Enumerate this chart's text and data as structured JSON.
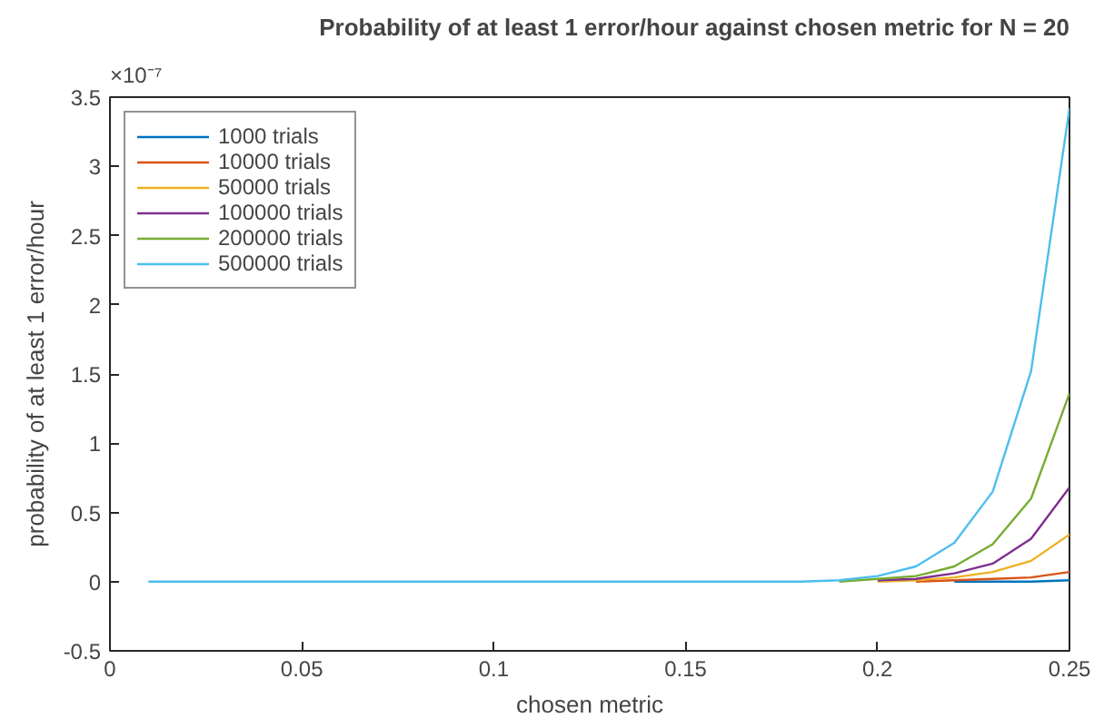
{
  "chart_data": {
    "type": "line",
    "title": "Probability of at least 1 error/hour against chosen metric for N = 20",
    "xlabel": "chosen metric",
    "ylabel": "probability of at least 1 error/hour",
    "annotations": [
      "×10⁻⁷"
    ],
    "x": [
      0.01,
      0.02,
      0.03,
      0.04,
      0.05,
      0.06,
      0.07,
      0.08,
      0.09,
      0.1,
      0.11,
      0.12,
      0.13,
      0.14,
      0.15,
      0.16,
      0.17,
      0.18,
      0.19,
      0.2,
      0.21,
      0.22,
      0.23,
      0.24,
      0.25
    ],
    "series": [
      {
        "name": "1000 trials",
        "color": "#0072bd",
        "values": [
          null,
          null,
          null,
          null,
          null,
          null,
          null,
          null,
          null,
          null,
          null,
          null,
          null,
          null,
          null,
          null,
          null,
          null,
          null,
          null,
          null,
          0,
          0,
          0,
          0.01
        ]
      },
      {
        "name": "10000 trials",
        "color": "#d95319",
        "values": [
          null,
          null,
          null,
          null,
          null,
          null,
          null,
          null,
          null,
          null,
          null,
          null,
          null,
          null,
          null,
          null,
          null,
          null,
          null,
          null,
          0,
          0.01,
          0.02,
          0.03,
          0.07
        ]
      },
      {
        "name": "50000 trials",
        "color": "#edb120",
        "values": [
          null,
          null,
          null,
          null,
          null,
          null,
          null,
          null,
          null,
          null,
          null,
          null,
          null,
          null,
          null,
          null,
          null,
          null,
          null,
          0,
          0.01,
          0.03,
          0.07,
          0.15,
          0.34
        ]
      },
      {
        "name": "100000 trials",
        "color": "#7e2f8e",
        "values": [
          null,
          null,
          null,
          null,
          null,
          null,
          null,
          null,
          null,
          null,
          null,
          null,
          null,
          null,
          null,
          null,
          null,
          null,
          null,
          0.01,
          0.02,
          0.06,
          0.13,
          0.31,
          0.68
        ]
      },
      {
        "name": "200000 trials",
        "color": "#77ac30",
        "values": [
          null,
          null,
          null,
          null,
          null,
          null,
          null,
          null,
          null,
          null,
          null,
          null,
          null,
          null,
          null,
          null,
          null,
          null,
          0,
          0.02,
          0.04,
          0.11,
          0.27,
          0.6,
          1.36
        ]
      },
      {
        "name": "500000 trials",
        "color": "#4dbeee",
        "values": [
          0,
          0,
          0,
          0,
          0,
          0,
          0,
          0,
          0,
          0,
          0,
          0,
          0,
          0,
          0,
          0,
          0,
          0,
          0.01,
          0.04,
          0.11,
          0.28,
          0.65,
          1.52,
          3.42
        ]
      }
    ],
    "xlim": [
      0,
      0.25
    ],
    "xticks": [
      0,
      0.05,
      0.1,
      0.15,
      0.2,
      0.25
    ],
    "ylim": [
      -0.5,
      3.5
    ],
    "yticks": [
      -0.5,
      0,
      0.5,
      1,
      1.5,
      2,
      2.5,
      3,
      3.5
    ],
    "legend": "top left",
    "grid": false
  }
}
